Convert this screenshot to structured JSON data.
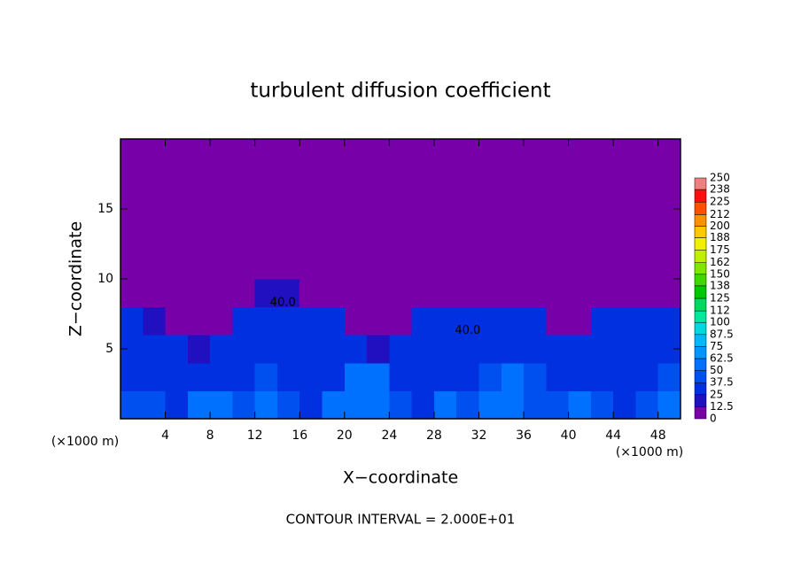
{
  "chart_data": {
    "type": "heatmap",
    "title": "turbulent diffusion coefficient",
    "xlabel": "X−coordinate",
    "ylabel": "Z−coordinate",
    "xunit_left": "(×1000 m)",
    "xunit_right": "(×1000 m)",
    "footer": "CONTOUR INTERVAL = 2.000E+01",
    "xlim": [
      0,
      50
    ],
    "ylim": [
      0,
      20
    ],
    "xticks": [
      4,
      8,
      12,
      16,
      20,
      24,
      28,
      32,
      36,
      40,
      44,
      48
    ],
    "yticks": [
      5,
      10,
      15
    ],
    "x": [
      1,
      3,
      5,
      7,
      9,
      11,
      13,
      15,
      17,
      19,
      21,
      23,
      25,
      27,
      29,
      31,
      33,
      35,
      37,
      39,
      41,
      43,
      45,
      47,
      49
    ],
    "y": [
      1,
      3,
      5,
      7,
      9,
      11,
      13,
      15,
      17,
      19
    ],
    "z": [
      [
        45,
        40,
        35,
        50,
        55,
        40,
        62,
        40,
        35,
        50,
        55,
        60,
        45,
        35,
        50,
        45,
        55,
        62,
        40,
        45,
        50,
        40,
        35,
        45,
        50
      ],
      [
        35,
        30,
        30,
        30,
        35,
        30,
        40,
        30,
        30,
        35,
        55,
        60,
        35,
        30,
        35,
        30,
        45,
        55,
        40,
        30,
        35,
        30,
        30,
        35,
        40
      ],
      [
        30,
        25,
        25,
        20,
        30,
        25,
        35,
        30,
        30,
        30,
        25,
        15,
        30,
        30,
        30,
        25,
        35,
        30,
        30,
        25,
        25,
        25,
        30,
        30,
        30
      ],
      [
        25,
        20,
        10,
        5,
        10,
        30,
        30,
        25,
        25,
        30,
        5,
        0,
        10,
        25,
        25,
        25,
        25,
        30,
        25,
        10,
        10,
        25,
        30,
        25,
        25
      ],
      [
        0,
        0,
        0,
        0,
        0,
        0,
        12.5,
        12.5,
        0,
        0,
        0,
        0,
        0,
        0,
        0,
        0,
        0,
        0,
        0,
        0,
        0,
        0,
        0,
        0,
        0
      ],
      [
        0,
        0,
        0,
        0,
        0,
        0,
        0,
        0,
        0,
        0,
        0,
        0,
        0,
        0,
        0,
        0,
        0,
        0,
        0,
        0,
        0,
        0,
        0,
        0,
        0
      ],
      [
        0,
        0,
        0,
        0,
        0,
        0,
        0,
        0,
        0,
        0,
        0,
        0,
        0,
        0,
        0,
        0,
        0,
        0,
        0,
        0,
        0,
        0,
        0,
        0,
        0
      ],
      [
        0,
        0,
        0,
        0,
        0,
        0,
        0,
        0,
        0,
        0,
        0,
        0,
        0,
        0,
        0,
        0,
        0,
        0,
        0,
        0,
        0,
        0,
        0,
        0,
        0
      ],
      [
        0,
        0,
        0,
        0,
        0,
        0,
        0,
        0,
        0,
        0,
        0,
        0,
        0,
        0,
        0,
        0,
        0,
        0,
        0,
        0,
        0,
        0,
        0,
        0,
        0
      ],
      [
        0,
        0,
        0,
        0,
        0,
        0,
        0,
        0,
        0,
        0,
        0,
        0,
        0,
        0,
        0,
        0,
        0,
        0,
        0,
        0,
        0,
        0,
        0,
        0,
        0
      ]
    ],
    "annotations": [
      {
        "text": "40.0",
        "x": 14.5,
        "y": 8.3
      },
      {
        "text": "40.0",
        "x": 31,
        "y": 6.3
      }
    ],
    "colorbar": {
      "ticks": [
        0,
        12.5,
        25,
        37.5,
        50,
        62.5,
        75,
        87.5,
        100,
        112,
        125,
        138,
        150,
        162,
        175,
        188,
        200,
        212,
        225,
        238,
        250
      ],
      "colors": [
        "#7800a8",
        "#2010c0",
        "#0030e0",
        "#0050f0",
        "#0070ff",
        "#0095ff",
        "#00b8ff",
        "#00d8e0",
        "#00e8a0",
        "#00d860",
        "#00c800",
        "#40d800",
        "#80e800",
        "#c0f000",
        "#f0f000",
        "#ffc800",
        "#ff9000",
        "#ff5000",
        "#ff1010",
        "#f08080"
      ]
    }
  }
}
